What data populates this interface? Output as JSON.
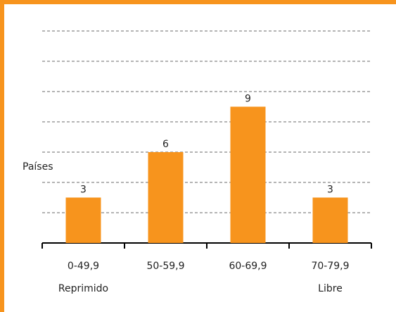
{
  "chart_data": {
    "type": "bar",
    "y_label": "Países",
    "categories": [
      "0-49,9",
      "50-59,9",
      "60-69,9",
      "70-79,9"
    ],
    "x_sublabels": [
      "Reprimido",
      null,
      null,
      "Libre"
    ],
    "values": [
      3,
      6,
      9,
      3
    ],
    "color": "#f7941d",
    "frame_color": "#f7941d",
    "ylim": [
      0,
      14
    ],
    "yticks": [
      2,
      4,
      6,
      8,
      10,
      12,
      14
    ],
    "grid": true
  }
}
